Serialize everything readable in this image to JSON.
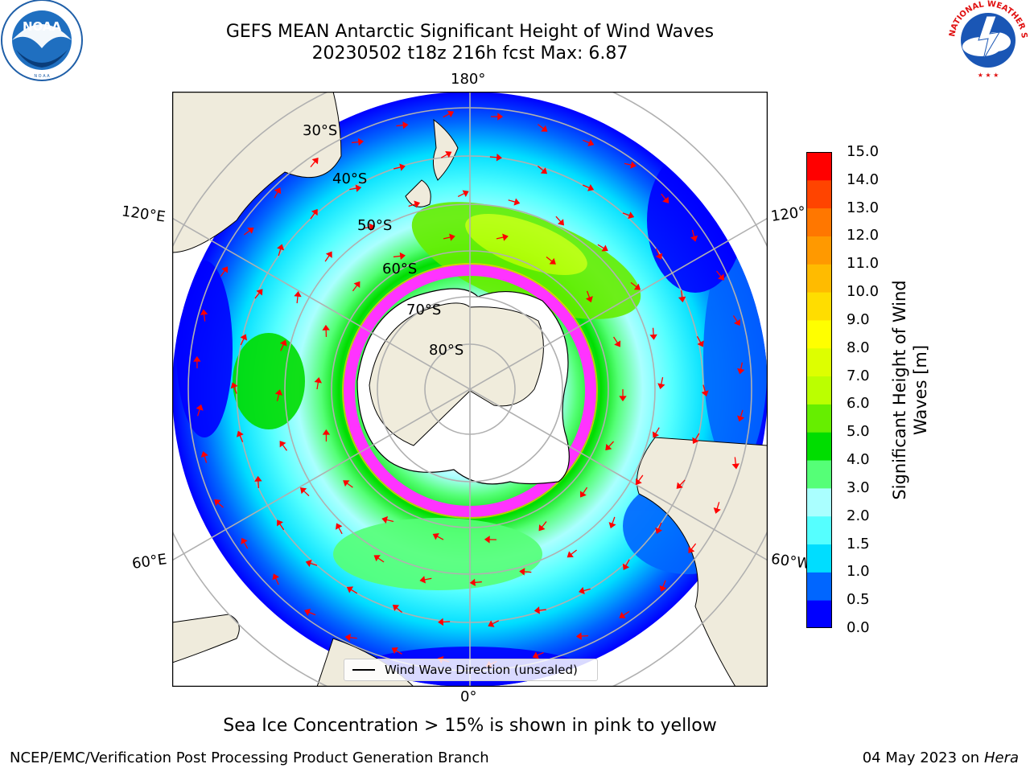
{
  "header": {
    "title_line1": "GEFS MEAN Antarctic Significant Height of Wind Waves",
    "title_line2": "20230502 t18z 216h fcst   Max: 6.87"
  },
  "logos": {
    "left": {
      "name": "NOAA",
      "text": "NOAA",
      "ring_text": "NATIONAL OCEANIC AND ATMOSPHERIC ADMINISTRATION · U.S. DEPARTMENT OF COMMERCE"
    },
    "right": {
      "name": "National Weather Service",
      "ring_text": "NATIONAL WEATHER SERVICE"
    }
  },
  "map": {
    "longitude_labels": {
      "top": "180°",
      "bottom": "0°",
      "left_upper": "120°E",
      "left_lower": "60°E",
      "right_upper": "120°",
      "right_lower": "60°W"
    },
    "latitude_labels": [
      "30°S",
      "40°S",
      "50°S",
      "60°S",
      "70°S",
      "80°S"
    ],
    "legend_text": "Wind Wave Direction (unscaled)"
  },
  "colorbar": {
    "title": "Significant Height of Wind Waves [m]",
    "ticks": [
      "0.0",
      "0.5",
      "1.0",
      "1.5",
      "2.0",
      "3.0",
      "4.0",
      "5.0",
      "6.0",
      "7.0",
      "8.0",
      "9.0",
      "10.0",
      "11.0",
      "12.0",
      "13.0",
      "14.0",
      "15.0"
    ],
    "colors": [
      "#0000ff",
      "#0066ff",
      "#00ddff",
      "#55ffff",
      "#aaffff",
      "#55ff77",
      "#00dd00",
      "#66ee00",
      "#bbff00",
      "#ddff00",
      "#ffff00",
      "#ffdd00",
      "#ffbb00",
      "#ff9900",
      "#ff7700",
      "#ff4400",
      "#ff0000"
    ]
  },
  "footer": {
    "note": "Sea Ice Concentration > 15% is shown in pink to yellow",
    "left": "NCEP/EMC/Verification Post Processing Product Generation Branch",
    "right_date": "04 May 2023 on",
    "right_host": "Hera"
  }
}
